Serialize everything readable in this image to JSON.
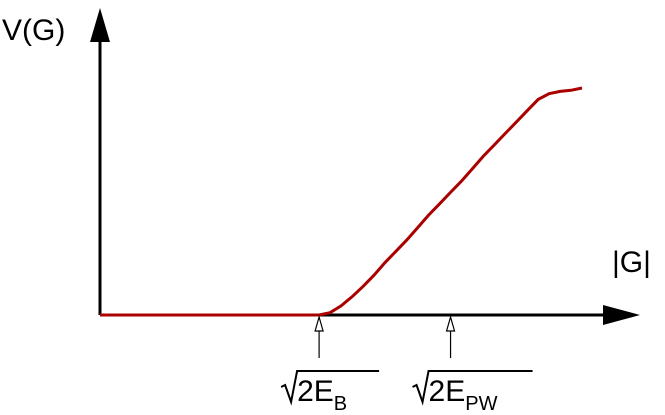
{
  "chart_data": {
    "type": "line",
    "xlabel": "|G|",
    "ylabel": "V(G)",
    "xlim": [
      0,
      2.2
    ],
    "ylim": [
      0,
      1.0
    ],
    "grid": false,
    "legend": "none",
    "ticks": [
      {
        "x": 1.0,
        "base": "2E",
        "sub": "B"
      },
      {
        "x": 1.6,
        "base": "2E",
        "sub": "PW"
      }
    ],
    "series": [
      {
        "color": "#aa0000",
        "x": [
          0,
          0.2,
          0.4,
          0.6,
          0.8,
          1.0,
          1.05,
          1.1,
          1.15,
          1.2,
          1.25,
          1.3,
          1.35,
          1.4,
          1.45,
          1.5,
          1.55,
          1.6,
          1.65,
          1.7,
          1.75,
          1.8,
          1.85,
          1.9,
          1.95,
          2.0,
          2.05,
          2.1,
          2.15,
          2.2
        ],
        "y": [
          0,
          0,
          0,
          0,
          0,
          0,
          0.01,
          0.04,
          0.08,
          0.125,
          0.175,
          0.23,
          0.28,
          0.33,
          0.385,
          0.44,
          0.49,
          0.54,
          0.59,
          0.645,
          0.7,
          0.75,
          0.8,
          0.85,
          0.9,
          0.95,
          0.975,
          0.985,
          0.99,
          1.0
        ]
      }
    ]
  },
  "colors": {
    "axis": "#000000",
    "curve": "#aa0000"
  }
}
